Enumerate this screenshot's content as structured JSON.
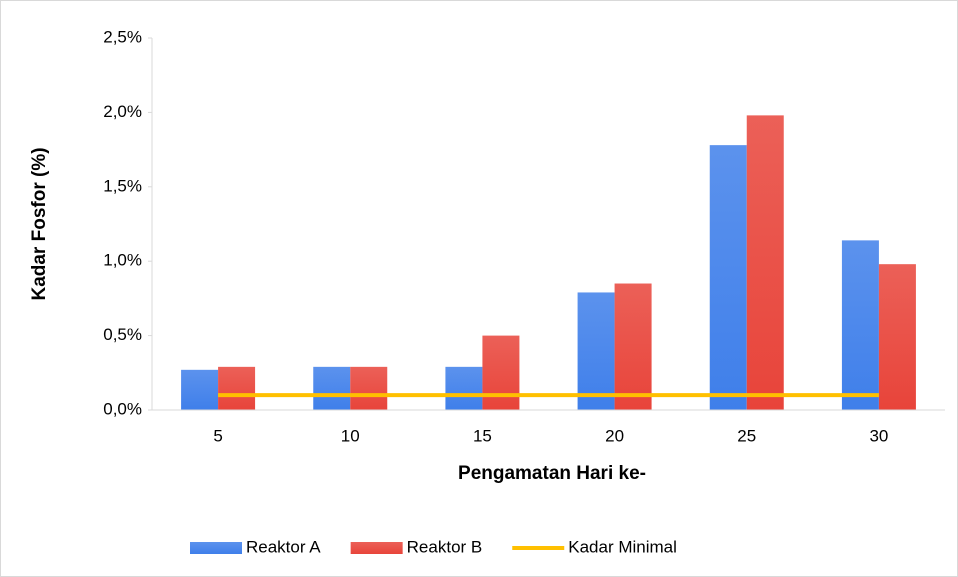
{
  "chart_data": {
    "type": "bar",
    "x_label": "Pengamatan Hari ke-",
    "y_label": "Kadar Fosfor (%)",
    "categories": [
      "5",
      "10",
      "15",
      "20",
      "25",
      "30"
    ],
    "series": [
      {
        "name": "Reaktor A",
        "color": "#3f7fea",
        "values": [
          0.27,
          0.29,
          0.29,
          0.79,
          1.78,
          1.14
        ]
      },
      {
        "name": "Reaktor B",
        "color": "#e8443a",
        "values": [
          0.29,
          0.29,
          0.5,
          0.85,
          1.98,
          0.98
        ]
      },
      {
        "name": "Kadar Minimal",
        "type": "line",
        "color": "#ffc000",
        "values": [
          0.1,
          0.1,
          0.1,
          0.1,
          0.1,
          0.1
        ]
      }
    ],
    "ylim": [
      0,
      2.5
    ],
    "yticks": [
      {
        "value": 0,
        "label": "0,0%"
      },
      {
        "value": 0.5,
        "label": "0,5%"
      },
      {
        "value": 1.0,
        "label": "1,0%"
      },
      {
        "value": 1.5,
        "label": "1,5%"
      },
      {
        "value": 2.0,
        "label": "2,0%"
      },
      {
        "value": 2.5,
        "label": "2,5%"
      }
    ],
    "legend": "bottom"
  }
}
